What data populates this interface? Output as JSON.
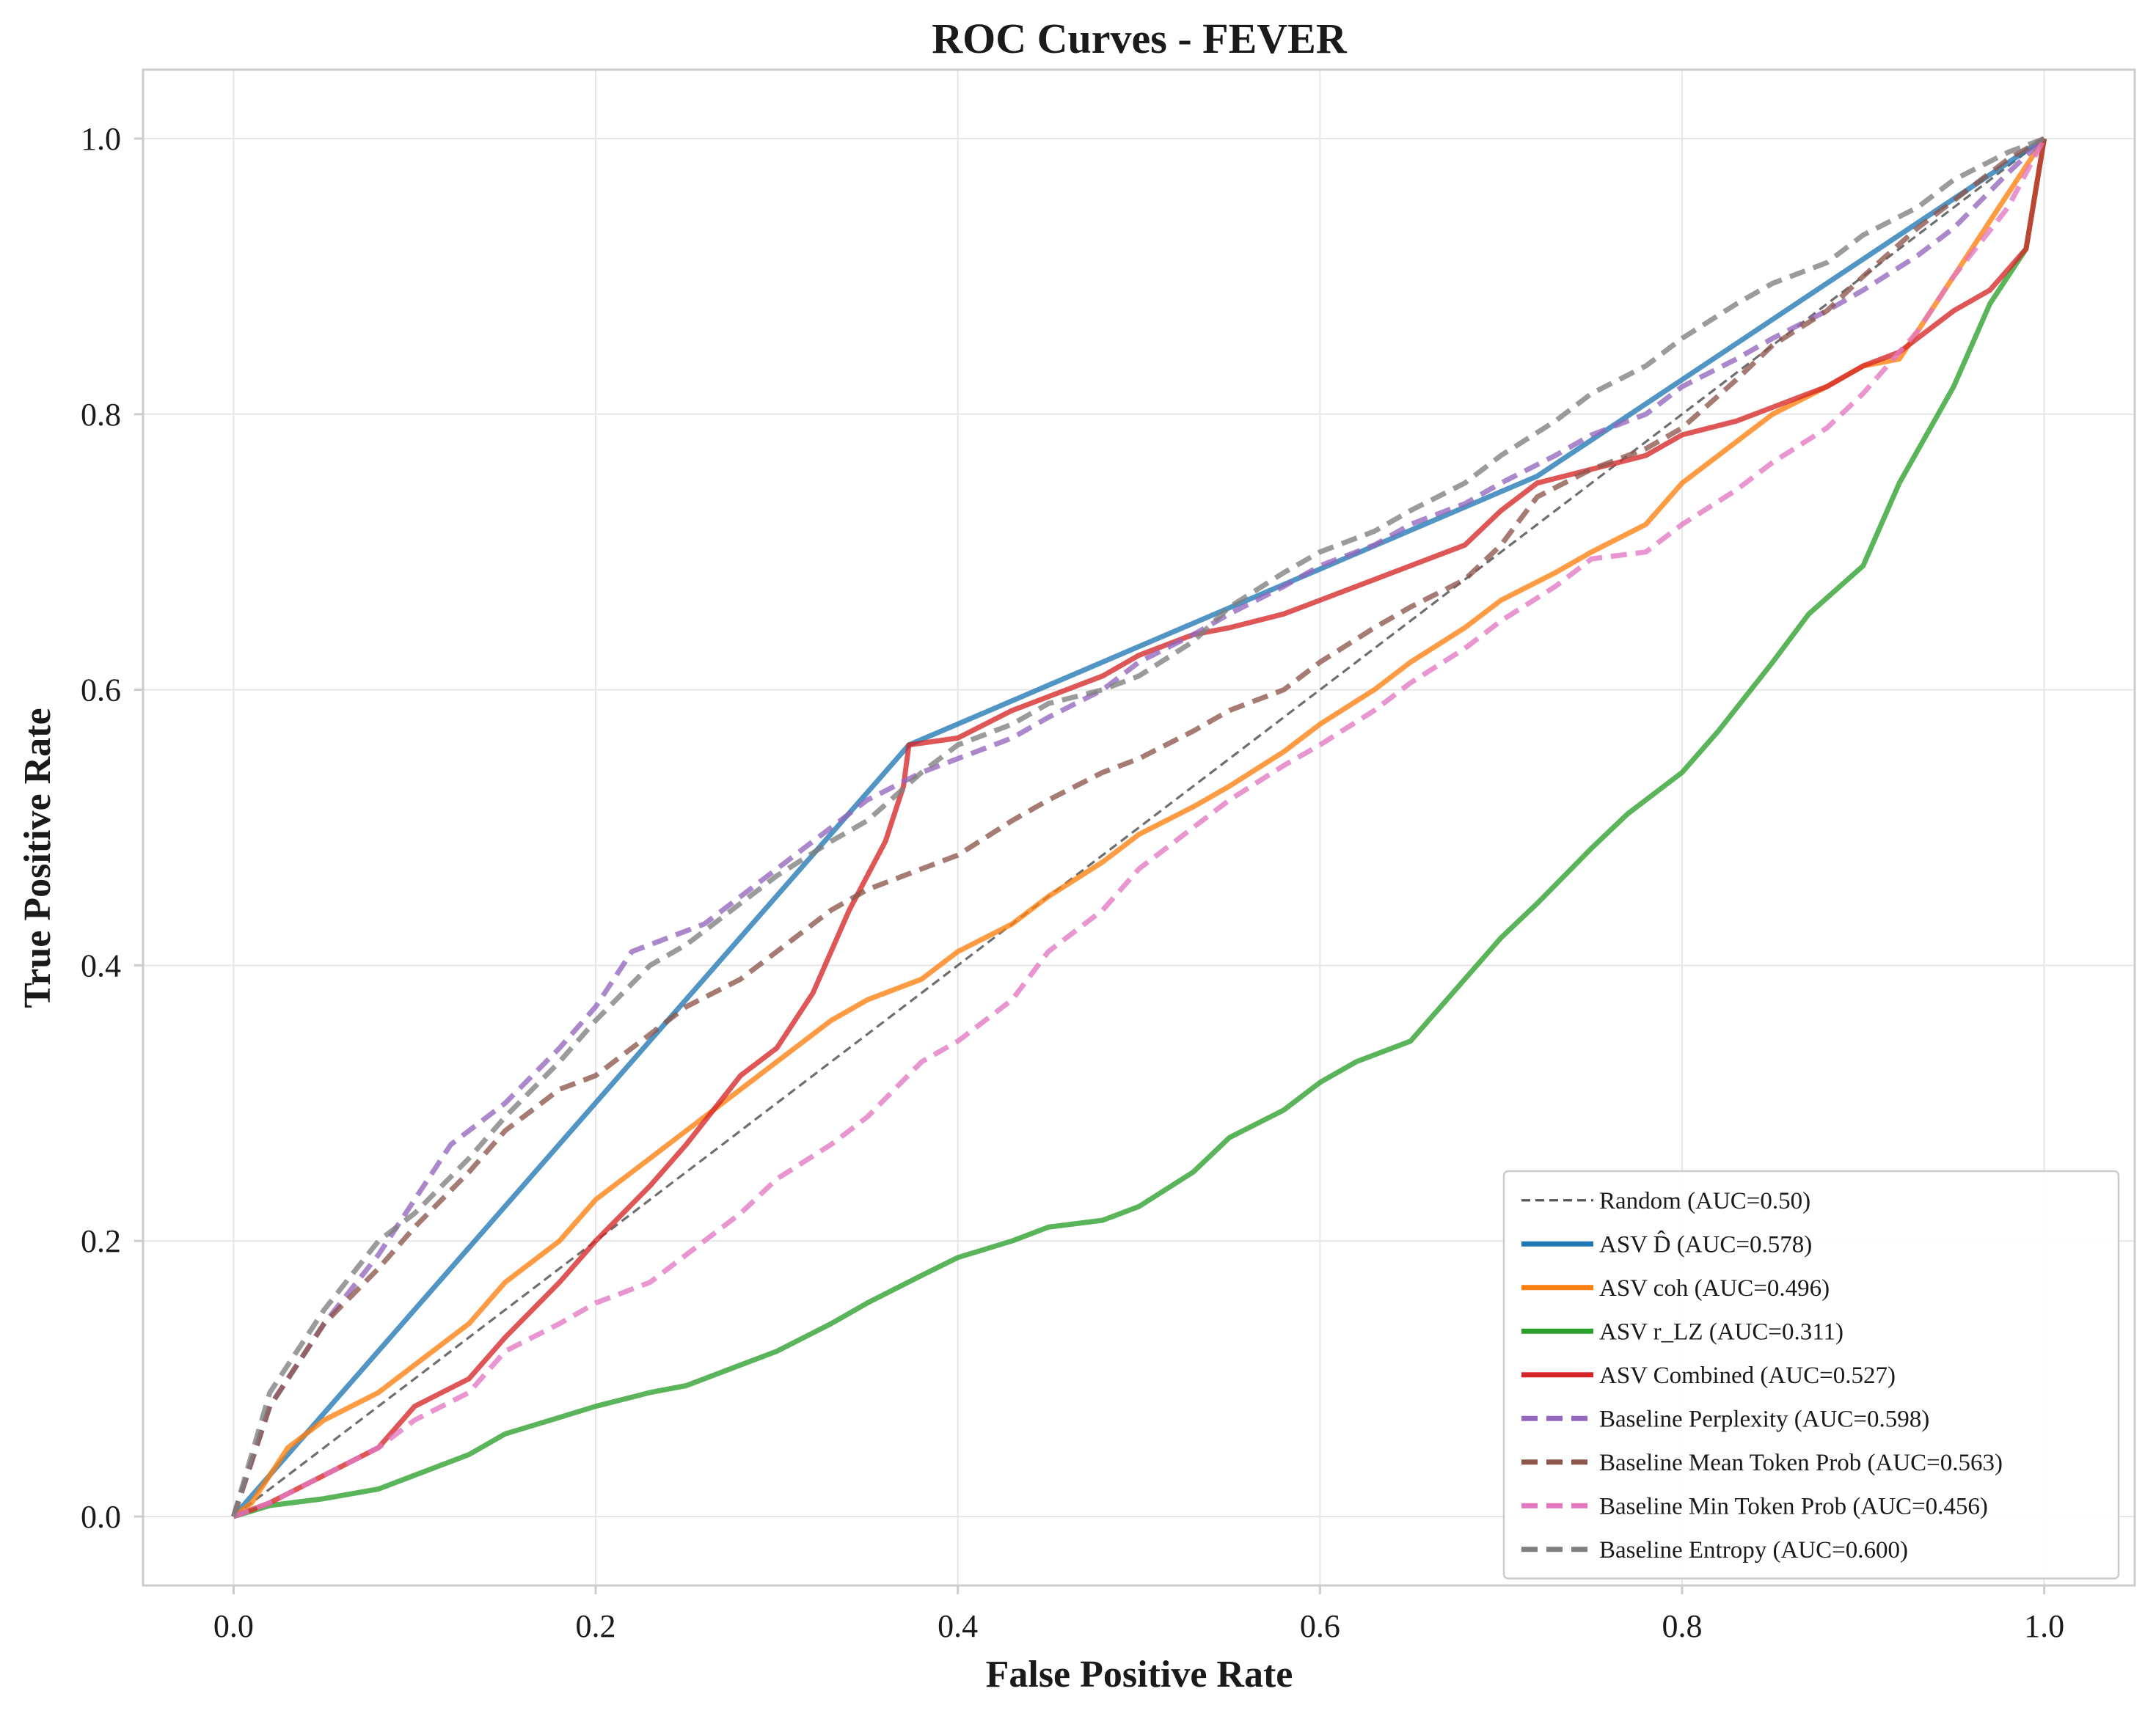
{
  "chart_data": {
    "type": "line",
    "title": "ROC Curves - FEVER",
    "xlabel": "False Positive Rate",
    "ylabel": "True Positive Rate",
    "xlim": [
      -0.05,
      1.05
    ],
    "ylim": [
      -0.05,
      1.05
    ],
    "xticks": [
      "0.0",
      "0.2",
      "0.4",
      "0.6",
      "0.8",
      "1.0"
    ],
    "yticks": [
      "0.0",
      "0.2",
      "0.4",
      "0.6",
      "0.8",
      "1.0"
    ],
    "grid": true,
    "legend_position": "lower right",
    "series": [
      {
        "name": "Random (AUC=0.50)",
        "color": "#555555",
        "style": "dashed-thin",
        "x": [
          0,
          1
        ],
        "y": [
          0,
          1
        ]
      },
      {
        "name": "ASV D̂ (AUC=0.578)",
        "color": "#1f77b4",
        "style": "solid",
        "x": [
          0,
          0.373,
          0.72,
          1.0
        ],
        "y": [
          0,
          0.56,
          0.755,
          1.0
        ]
      },
      {
        "name": "ASV coh\u0012 (AUC=0.496)",
        "color": "#ff7f0e",
        "style": "solid",
        "x": [
          0,
          0.01,
          0.03,
          0.05,
          0.08,
          0.1,
          0.13,
          0.15,
          0.18,
          0.2,
          0.23,
          0.25,
          0.28,
          0.3,
          0.33,
          0.35,
          0.38,
          0.4,
          0.43,
          0.45,
          0.48,
          0.5,
          0.53,
          0.55,
          0.58,
          0.6,
          0.63,
          0.65,
          0.68,
          0.7,
          0.73,
          0.75,
          0.78,
          0.8,
          0.83,
          0.85,
          0.88,
          0.9,
          0.92,
          0.95,
          0.98,
          1.0
        ],
        "y": [
          0,
          0.01,
          0.05,
          0.07,
          0.09,
          0.11,
          0.14,
          0.17,
          0.2,
          0.23,
          0.26,
          0.28,
          0.31,
          0.33,
          0.36,
          0.375,
          0.39,
          0.41,
          0.43,
          0.45,
          0.475,
          0.495,
          0.515,
          0.53,
          0.555,
          0.575,
          0.6,
          0.62,
          0.645,
          0.665,
          0.685,
          0.7,
          0.72,
          0.75,
          0.78,
          0.8,
          0.82,
          0.835,
          0.84,
          0.9,
          0.96,
          1.0
        ]
      },
      {
        "name": "ASV r_LZ (AUC=0.311)",
        "color": "#2ca02c",
        "style": "solid",
        "x": [
          0,
          0.02,
          0.05,
          0.08,
          0.1,
          0.13,
          0.15,
          0.18,
          0.2,
          0.23,
          0.25,
          0.28,
          0.3,
          0.33,
          0.35,
          0.38,
          0.4,
          0.43,
          0.45,
          0.48,
          0.5,
          0.53,
          0.55,
          0.58,
          0.6,
          0.62,
          0.65,
          0.67,
          0.7,
          0.72,
          0.75,
          0.77,
          0.8,
          0.82,
          0.85,
          0.87,
          0.9,
          0.92,
          0.95,
          0.97,
          0.99,
          1.0
        ],
        "y": [
          0,
          0.008,
          0.013,
          0.02,
          0.03,
          0.045,
          0.06,
          0.072,
          0.08,
          0.09,
          0.095,
          0.11,
          0.12,
          0.14,
          0.155,
          0.175,
          0.188,
          0.2,
          0.21,
          0.215,
          0.225,
          0.25,
          0.275,
          0.295,
          0.315,
          0.33,
          0.345,
          0.375,
          0.42,
          0.445,
          0.485,
          0.51,
          0.54,
          0.57,
          0.62,
          0.655,
          0.69,
          0.75,
          0.82,
          0.88,
          0.92,
          1.0
        ]
      },
      {
        "name": "ASV Combined (AUC=0.527)",
        "color": "#d62728",
        "style": "solid",
        "x": [
          0,
          0.02,
          0.05,
          0.08,
          0.1,
          0.13,
          0.15,
          0.18,
          0.2,
          0.23,
          0.25,
          0.28,
          0.3,
          0.32,
          0.34,
          0.36,
          0.37,
          0.373,
          0.4,
          0.43,
          0.45,
          0.48,
          0.5,
          0.53,
          0.55,
          0.58,
          0.6,
          0.63,
          0.65,
          0.68,
          0.7,
          0.72,
          0.75,
          0.78,
          0.8,
          0.83,
          0.85,
          0.88,
          0.9,
          0.92,
          0.95,
          0.97,
          0.99,
          1.0
        ],
        "y": [
          0,
          0.01,
          0.03,
          0.05,
          0.08,
          0.1,
          0.13,
          0.17,
          0.2,
          0.24,
          0.27,
          0.32,
          0.34,
          0.38,
          0.44,
          0.49,
          0.53,
          0.56,
          0.565,
          0.585,
          0.595,
          0.61,
          0.625,
          0.64,
          0.645,
          0.655,
          0.665,
          0.68,
          0.69,
          0.705,
          0.73,
          0.75,
          0.76,
          0.77,
          0.785,
          0.795,
          0.805,
          0.82,
          0.835,
          0.845,
          0.875,
          0.89,
          0.92,
          1.0
        ]
      },
      {
        "name": "Baseline Perplexity (AUC=0.598)",
        "color": "#9467bd",
        "style": "dashed",
        "x": [
          0,
          0.02,
          0.05,
          0.08,
          0.1,
          0.12,
          0.15,
          0.18,
          0.2,
          0.22,
          0.24,
          0.26,
          0.28,
          0.3,
          0.33,
          0.35,
          0.38,
          0.4,
          0.43,
          0.45,
          0.48,
          0.5,
          0.53,
          0.55,
          0.58,
          0.6,
          0.63,
          0.65,
          0.68,
          0.7,
          0.73,
          0.75,
          0.78,
          0.8,
          0.83,
          0.85,
          0.88,
          0.9,
          0.93,
          0.95,
          0.98,
          1.0
        ],
        "y": [
          0,
          0.08,
          0.14,
          0.19,
          0.23,
          0.27,
          0.3,
          0.34,
          0.37,
          0.41,
          0.42,
          0.43,
          0.45,
          0.47,
          0.5,
          0.52,
          0.54,
          0.55,
          0.565,
          0.58,
          0.6,
          0.62,
          0.64,
          0.655,
          0.675,
          0.69,
          0.705,
          0.72,
          0.735,
          0.75,
          0.77,
          0.785,
          0.8,
          0.82,
          0.84,
          0.855,
          0.875,
          0.89,
          0.915,
          0.935,
          0.975,
          1.0
        ]
      },
      {
        "name": "Baseline Mean Token Prob (AUC=0.563)",
        "color": "#8c564b",
        "style": "dashed",
        "x": [
          0,
          0.02,
          0.05,
          0.08,
          0.1,
          0.13,
          0.15,
          0.18,
          0.2,
          0.23,
          0.25,
          0.28,
          0.3,
          0.33,
          0.35,
          0.38,
          0.4,
          0.43,
          0.45,
          0.48,
          0.5,
          0.53,
          0.55,
          0.58,
          0.6,
          0.63,
          0.65,
          0.68,
          0.7,
          0.72,
          0.75,
          0.78,
          0.8,
          0.83,
          0.85,
          0.88,
          0.9,
          0.93,
          0.95,
          0.98,
          1.0
        ],
        "y": [
          0,
          0.08,
          0.14,
          0.18,
          0.21,
          0.25,
          0.28,
          0.31,
          0.32,
          0.35,
          0.37,
          0.39,
          0.41,
          0.44,
          0.455,
          0.47,
          0.48,
          0.505,
          0.52,
          0.54,
          0.55,
          0.57,
          0.585,
          0.6,
          0.62,
          0.645,
          0.66,
          0.68,
          0.705,
          0.74,
          0.76,
          0.775,
          0.79,
          0.825,
          0.85,
          0.875,
          0.9,
          0.935,
          0.955,
          0.985,
          1.0
        ]
      },
      {
        "name": "Baseline Min Token Prob (AUC=0.456)",
        "color": "#e377c2",
        "style": "dashed",
        "x": [
          0,
          0.02,
          0.05,
          0.08,
          0.1,
          0.13,
          0.15,
          0.18,
          0.2,
          0.23,
          0.25,
          0.28,
          0.3,
          0.33,
          0.35,
          0.38,
          0.4,
          0.43,
          0.45,
          0.48,
          0.5,
          0.53,
          0.55,
          0.58,
          0.6,
          0.63,
          0.65,
          0.68,
          0.7,
          0.73,
          0.75,
          0.78,
          0.8,
          0.83,
          0.85,
          0.88,
          0.9,
          0.93,
          0.95,
          0.98,
          1.0
        ],
        "y": [
          0,
          0.01,
          0.03,
          0.05,
          0.07,
          0.09,
          0.12,
          0.14,
          0.155,
          0.17,
          0.19,
          0.22,
          0.245,
          0.27,
          0.29,
          0.33,
          0.345,
          0.375,
          0.41,
          0.44,
          0.47,
          0.5,
          0.52,
          0.545,
          0.56,
          0.585,
          0.605,
          0.63,
          0.65,
          0.675,
          0.695,
          0.7,
          0.72,
          0.745,
          0.765,
          0.79,
          0.815,
          0.86,
          0.9,
          0.95,
          1.0
        ]
      },
      {
        "name": "Baseline Entropy (AUC=0.600)",
        "color": "#7f7f7f",
        "style": "dashed",
        "x": [
          0,
          0.02,
          0.05,
          0.08,
          0.1,
          0.13,
          0.15,
          0.18,
          0.2,
          0.23,
          0.25,
          0.28,
          0.3,
          0.33,
          0.35,
          0.38,
          0.4,
          0.43,
          0.45,
          0.48,
          0.5,
          0.53,
          0.55,
          0.58,
          0.6,
          0.63,
          0.65,
          0.68,
          0.7,
          0.73,
          0.75,
          0.78,
          0.8,
          0.83,
          0.85,
          0.88,
          0.9,
          0.93,
          0.95,
          0.98,
          1.0
        ],
        "y": [
          0,
          0.09,
          0.15,
          0.2,
          0.22,
          0.26,
          0.29,
          0.33,
          0.36,
          0.4,
          0.415,
          0.445,
          0.465,
          0.49,
          0.505,
          0.54,
          0.56,
          0.575,
          0.59,
          0.6,
          0.61,
          0.635,
          0.66,
          0.685,
          0.7,
          0.715,
          0.73,
          0.75,
          0.77,
          0.795,
          0.815,
          0.835,
          0.855,
          0.88,
          0.895,
          0.91,
          0.93,
          0.95,
          0.97,
          0.99,
          1.0
        ]
      }
    ]
  }
}
